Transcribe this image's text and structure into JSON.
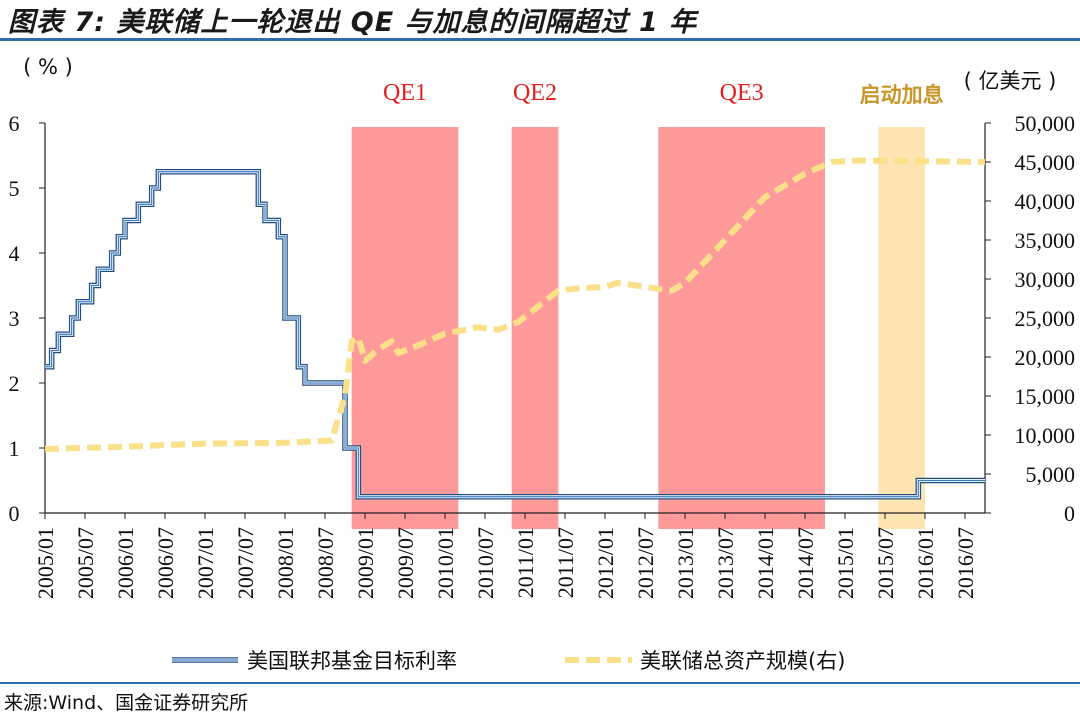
{
  "title": "图表 7:  美联储上一轮退出 QE 与加息的间隔超过 1 年",
  "source": "来源:Wind、国金证券研究所",
  "chart_data": {
    "type": "line",
    "left_unit": "( % )",
    "right_unit": "( 亿美元 )",
    "y_left": {
      "range": [
        0,
        6
      ],
      "ticks": [
        "0",
        "1",
        "2",
        "3",
        "4",
        "5",
        "6"
      ]
    },
    "y_right": {
      "range": [
        0,
        50000
      ],
      "ticks": [
        "0",
        "5,000",
        "10,000",
        "15,000",
        "20,000",
        "25,000",
        "30,000",
        "35,000",
        "40,000",
        "45,000",
        "50,000"
      ]
    },
    "x_range": [
      2005.0,
      2016.75
    ],
    "x_ticks": [
      "2005/01",
      "2005/07",
      "2006/01",
      "2006/07",
      "2007/01",
      "2007/07",
      "2008/01",
      "2008/07",
      "2009/01",
      "2009/07",
      "2010/01",
      "2010/07",
      "2011/01",
      "2011/07",
      "2012/01",
      "2012/07",
      "2013/01",
      "2013/07",
      "2014/01",
      "2014/07",
      "2015/01",
      "2015/07",
      "2016/01",
      "2016/07"
    ],
    "periods": [
      {
        "label": "QE1",
        "start": "2008/11",
        "end": "2010/03",
        "color": "#ff9a9a"
      },
      {
        "label": "QE2",
        "start": "2010/11",
        "end": "2011/06",
        "color": "#ff9a9a"
      },
      {
        "label": "QE3",
        "start": "2012/09",
        "end": "2014/10",
        "color": "#ff9a9a"
      },
      {
        "label": "启动加息",
        "start": "2015/06",
        "end": "2016/01",
        "color": "#fce5b0"
      }
    ],
    "series": [
      {
        "name": "美国联邦基金目标利率",
        "axis": "left",
        "style": "solid",
        "color": "#3a7bbf",
        "points": [
          [
            "2005/01",
            2.25
          ],
          [
            "2005/02",
            2.5
          ],
          [
            "2005/03",
            2.75
          ],
          [
            "2005/05",
            3.0
          ],
          [
            "2005/06",
            3.25
          ],
          [
            "2005/08",
            3.5
          ],
          [
            "2005/09",
            3.75
          ],
          [
            "2005/11",
            4.0
          ],
          [
            "2005/12",
            4.25
          ],
          [
            "2006/01",
            4.5
          ],
          [
            "2006/03",
            4.75
          ],
          [
            "2006/05",
            5.0
          ],
          [
            "2006/06",
            5.25
          ],
          [
            "2007/09",
            4.75
          ],
          [
            "2007/10",
            4.5
          ],
          [
            "2007/12",
            4.25
          ],
          [
            "2008/01",
            3.0
          ],
          [
            "2008/03",
            2.25
          ],
          [
            "2008/04",
            2.0
          ],
          [
            "2008/10",
            1.0
          ],
          [
            "2008/12",
            0.25
          ],
          [
            "2015/12",
            0.5
          ],
          [
            "2016/10",
            0.5
          ]
        ]
      },
      {
        "name": "美联储总资产规模(右)",
        "axis": "right",
        "style": "dashed",
        "color": "#fbe08a",
        "points": [
          [
            "2005/01",
            8200
          ],
          [
            "2006/01",
            8500
          ],
          [
            "2007/01",
            8900
          ],
          [
            "2008/01",
            9000
          ],
          [
            "2008/08",
            9300
          ],
          [
            "2008/10",
            15000
          ],
          [
            "2008/11",
            22000
          ],
          [
            "2008/12",
            22500
          ],
          [
            "2009/01",
            19500
          ],
          [
            "2009/03",
            21000
          ],
          [
            "2009/05",
            22000
          ],
          [
            "2009/06",
            20500
          ],
          [
            "2009/09",
            21500
          ],
          [
            "2010/01",
            23000
          ],
          [
            "2010/06",
            23800
          ],
          [
            "2010/09",
            23500
          ],
          [
            "2010/12",
            24500
          ],
          [
            "2011/03",
            26500
          ],
          [
            "2011/06",
            28500
          ],
          [
            "2011/09",
            28800
          ],
          [
            "2012/01",
            29000
          ],
          [
            "2012/03",
            29500
          ],
          [
            "2012/07",
            29000
          ],
          [
            "2012/11",
            28500
          ],
          [
            "2013/01",
            29500
          ],
          [
            "2013/07",
            35000
          ],
          [
            "2014/01",
            40500
          ],
          [
            "2014/07",
            43500
          ],
          [
            "2014/11",
            45000
          ],
          [
            "2015/03",
            45200
          ],
          [
            "2016/01",
            45100
          ],
          [
            "2016/10",
            45000
          ]
        ]
      }
    ]
  }
}
